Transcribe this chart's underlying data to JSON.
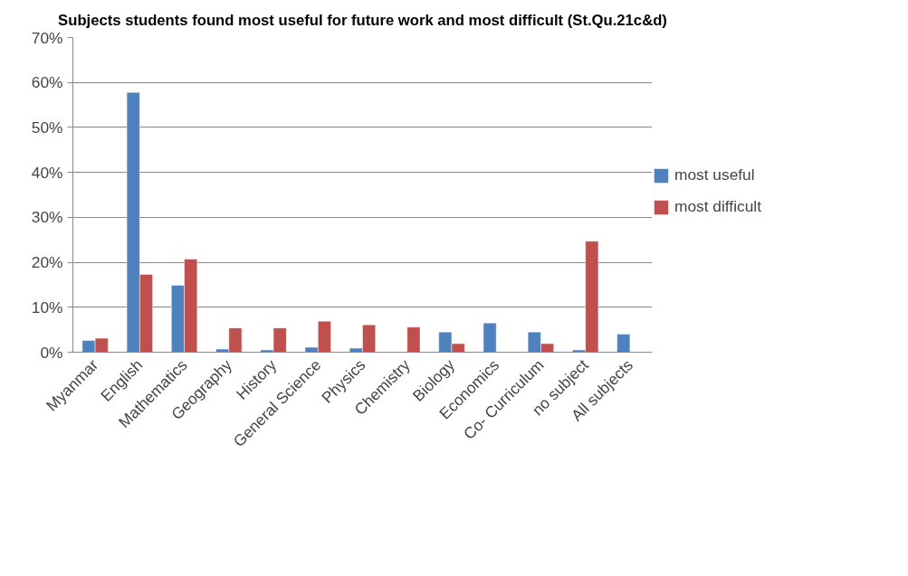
{
  "chart_data": {
    "type": "bar",
    "title": "Subjects students found most useful for future work and most difficult (St.Qu.21c&d)",
    "categories": [
      "Myanmar",
      "English",
      "Mathematics",
      "Geography",
      "History",
      "General Science",
      "Physics",
      "Chemistry",
      "Biology",
      "Economics",
      "Co- Curriculum",
      "no subject",
      "All subjects"
    ],
    "series": [
      {
        "name": "most useful",
        "color": "#4f81bd",
        "values": [
          2.6,
          57.8,
          14.9,
          0.7,
          0.5,
          1.1,
          0.9,
          null,
          4.5,
          6.5,
          4.5,
          0.5,
          4.0
        ]
      },
      {
        "name": "most difficult",
        "color": "#c0504d",
        "values": [
          3.1,
          17.3,
          20.7,
          5.4,
          5.4,
          6.9,
          6.1,
          5.6,
          1.9,
          null,
          1.9,
          24.7,
          null
        ]
      }
    ],
    "ylim": [
      0,
      70
    ],
    "yticks": [
      {
        "value": 0,
        "label": "0%"
      },
      {
        "value": 10,
        "label": "10%"
      },
      {
        "value": 20,
        "label": "20%"
      },
      {
        "value": 30,
        "label": "30%"
      },
      {
        "value": 40,
        "label": "40%"
      },
      {
        "value": 50,
        "label": "50%"
      },
      {
        "value": 60,
        "label": "60%"
      },
      {
        "value": 70,
        "label": "70%"
      }
    ],
    "grid": "y",
    "legend": "right"
  }
}
